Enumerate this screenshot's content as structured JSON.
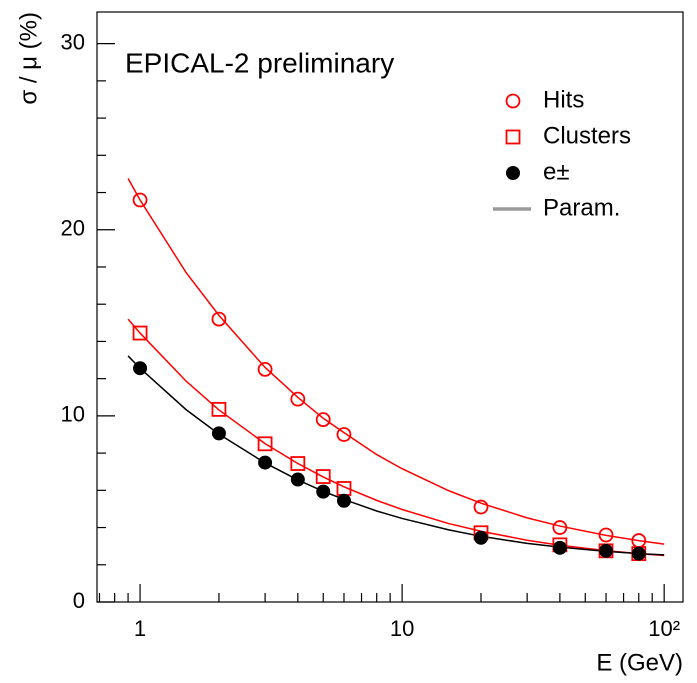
{
  "chart_data": {
    "type": "scatter",
    "annotation": "EPICAL-2 preliminary",
    "x_label": "E (GeV)",
    "y_label": "σ / μ (%)",
    "log_x": true,
    "xlim": [
      0.685,
      118
    ],
    "ylim": [
      0,
      31.7
    ],
    "xticks": [
      1,
      10,
      {
        "value": 100,
        "label": "10²"
      }
    ],
    "xminorticks": [
      0.7,
      0.8,
      0.9,
      2,
      3,
      4,
      5,
      6,
      7,
      8,
      9,
      20,
      30,
      40,
      50,
      60,
      70,
      80,
      90
    ],
    "yticks": [
      0,
      10,
      20,
      30
    ],
    "yminorticks": [
      2,
      4,
      6,
      8,
      12,
      14,
      16,
      18,
      22,
      24,
      26,
      28
    ],
    "legend_position": "upper right",
    "series": [
      {
        "name": "Hits",
        "color": "#ff0000",
        "marker": "circle-open",
        "x": [
          1,
          2,
          3,
          4,
          5,
          6,
          20,
          40,
          60,
          80
        ],
        "values": [
          21.6,
          15.2,
          12.5,
          10.9,
          9.8,
          9.0,
          5.1,
          4.0,
          3.6,
          3.3
        ]
      },
      {
        "name": "Clusters",
        "color": "#ff0000",
        "marker": "square-open",
        "x": [
          1,
          2,
          3,
          4,
          5,
          6,
          20,
          40,
          60,
          80
        ],
        "values": [
          14.45,
          10.35,
          8.5,
          7.44,
          6.74,
          6.1,
          3.72,
          3.07,
          2.75,
          2.6
        ]
      },
      {
        "name": "e±",
        "color": "#000000",
        "marker": "circle-filled",
        "x": [
          1,
          2,
          3,
          4,
          5,
          6,
          20,
          40,
          60,
          80
        ],
        "values": [
          12.56,
          9.06,
          7.49,
          6.58,
          5.93,
          5.44,
          3.45,
          2.91,
          2.75,
          2.6
        ]
      }
    ],
    "fits": {
      "name": "Param.",
      "legend_color": "#999999",
      "curves": [
        {
          "color": "#ff0000",
          "x": [
            0.9,
            1,
            1.5,
            2,
            3,
            4,
            5,
            6,
            8,
            10,
            15,
            20,
            30,
            40,
            60,
            80,
            100
          ],
          "values": [
            22.76,
            21.6,
            17.69,
            15.4,
            12.6,
            11.0,
            9.87,
            9.1,
            7.92,
            7.16,
            5.99,
            5.31,
            4.52,
            4.08,
            3.58,
            3.3,
            3.11
          ]
        },
        {
          "color": "#ff0000",
          "x": [
            0.9,
            1,
            1.5,
            2,
            3,
            4,
            5,
            6,
            8,
            10,
            15,
            20,
            30,
            40,
            60,
            80,
            100
          ],
          "values": [
            15.2,
            14.45,
            11.86,
            10.32,
            8.51,
            7.44,
            6.72,
            6.19,
            5.46,
            4.97,
            4.22,
            3.8,
            3.32,
            3.05,
            2.76,
            2.6,
            2.5
          ]
        },
        {
          "color": "#000000",
          "x": [
            0.9,
            1,
            1.5,
            2,
            3,
            4,
            5,
            6,
            8,
            10,
            15,
            20,
            30,
            40,
            60,
            80,
            100
          ],
          "values": [
            13.22,
            12.56,
            10.33,
            9.02,
            7.47,
            6.56,
            5.95,
            5.51,
            4.89,
            4.49,
            3.88,
            3.53,
            3.15,
            2.95,
            2.72,
            2.6,
            2.53
          ]
        }
      ]
    }
  }
}
